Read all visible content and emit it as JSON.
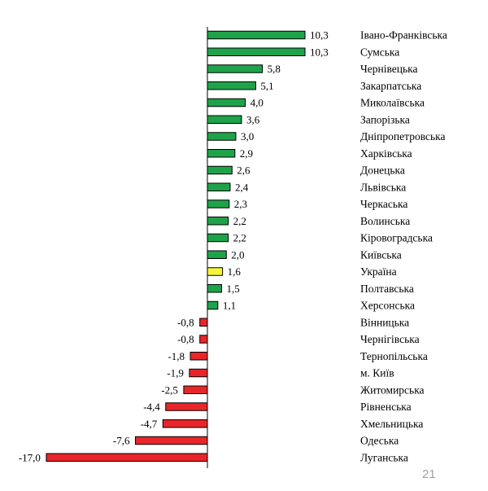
{
  "page_number": "21",
  "colors": {
    "positive": "#1fa34a",
    "highlight": "#f5f53a",
    "negative": "#e8262a",
    "axis": "#000000"
  },
  "chart_data": {
    "type": "bar",
    "orientation": "horizontal",
    "xlim": [
      -17.0,
      10.3
    ],
    "grid": false,
    "legend": "none",
    "categories": [
      "Івано-Франківська",
      "Сумська",
      "Чернівецька",
      "Закарпатська",
      "Миколаївська",
      "Запорізька",
      "Дніпропетровська",
      "Харківська",
      "Донецька",
      "Львівська",
      "Черкаська",
      "Волинська",
      "Кіровоградська",
      "Київська",
      "Україна",
      "Полтавська",
      "Херсонська",
      "Вінницька",
      "Чернігівська",
      "Тернопільська",
      "м. Київ",
      "Житомирська",
      "Рівненська",
      "Хмельницька",
      "Одеська",
      "Луганська"
    ],
    "values": [
      10.3,
      10.3,
      5.8,
      5.1,
      4.0,
      3.6,
      3.0,
      2.9,
      2.6,
      2.4,
      2.3,
      2.2,
      2.2,
      2.0,
      1.6,
      1.5,
      1.1,
      -0.8,
      -0.8,
      -1.8,
      -1.9,
      -2.5,
      -4.4,
      -4.7,
      -7.6,
      -17.0
    ],
    "value_labels": [
      "10,3",
      "10,3",
      "5,8",
      "5,1",
      "4,0",
      "3,6",
      "3,0",
      "2,9",
      "2,6",
      "2,4",
      "2,3",
      "2,2",
      "2,2",
      "2,0",
      "1,6",
      "1,5",
      "1,1",
      "-0,8",
      "-0,8",
      "-1,8",
      "-1,9",
      "-2,5",
      "-4,4",
      "-4,7",
      "-7,6",
      "-17,0"
    ],
    "highlight_category": "Україна"
  }
}
